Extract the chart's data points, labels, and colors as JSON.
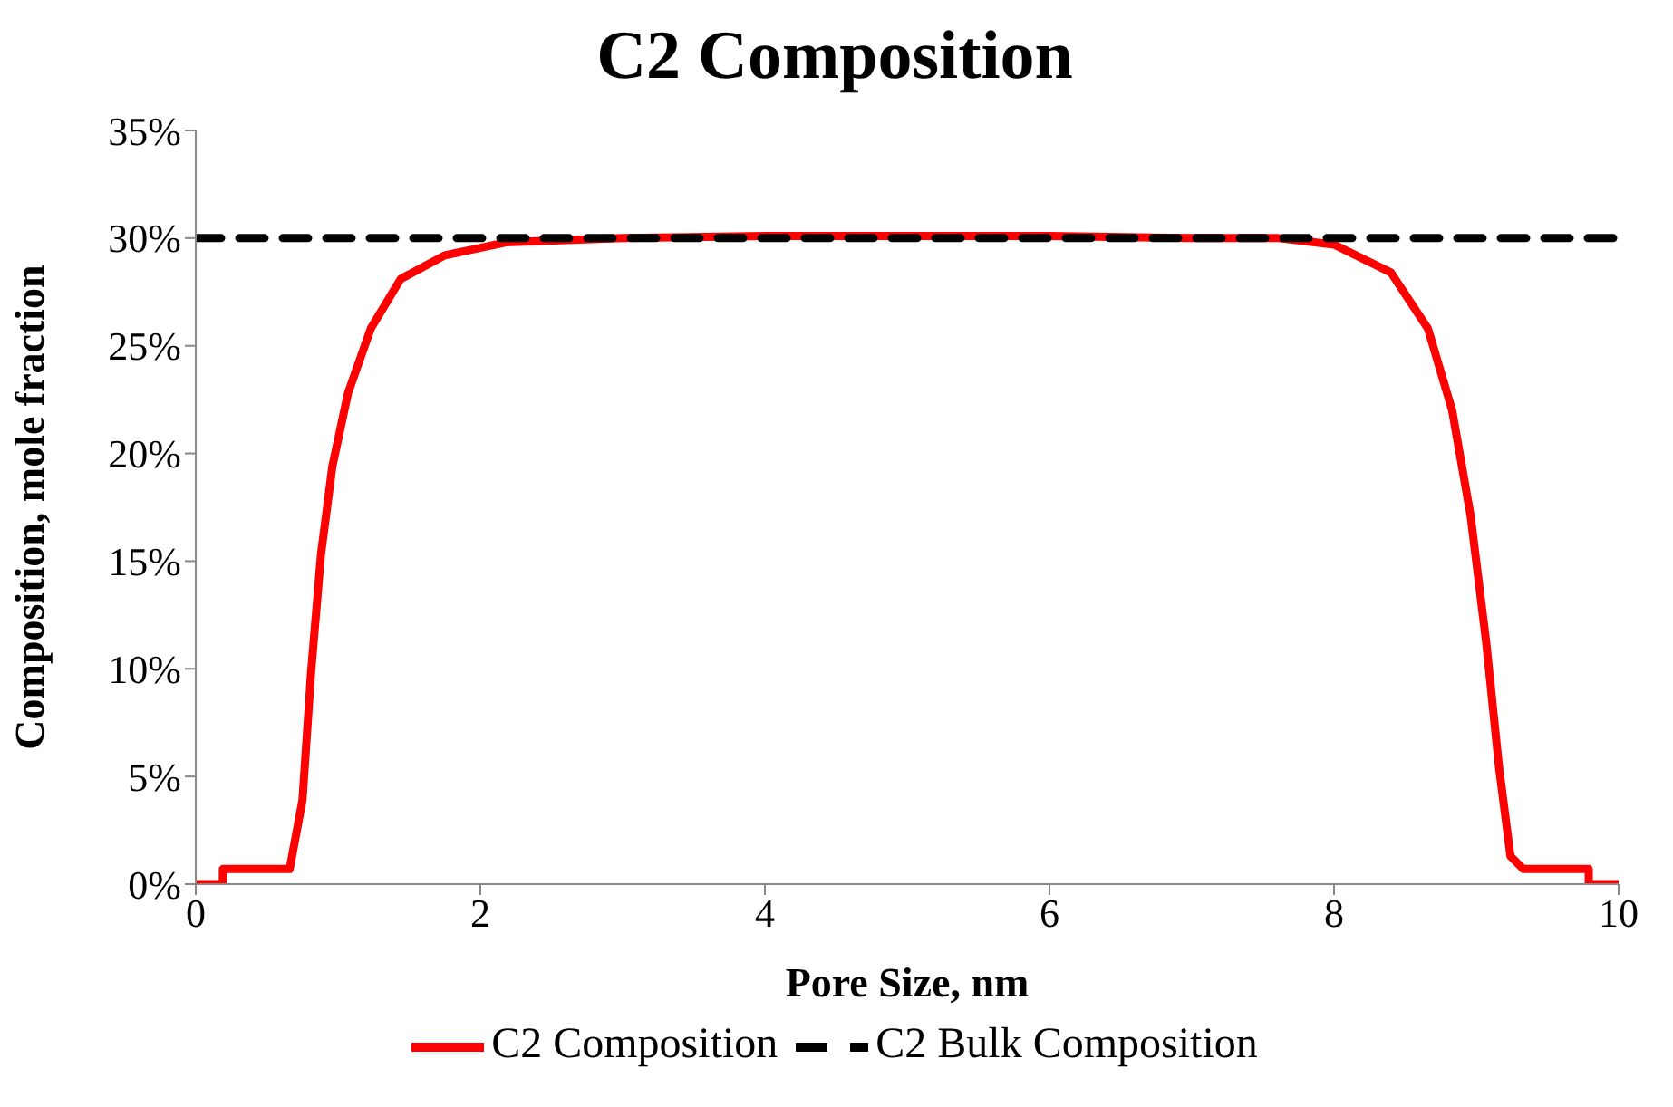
{
  "chart_data": {
    "type": "line",
    "title": "C2 Composition",
    "xlabel": "Pore Size, nm",
    "ylabel": "Composition, mole fraction",
    "xlim": [
      0,
      10
    ],
    "xticks": [
      0,
      2,
      4,
      6,
      8,
      10
    ],
    "ylim": [
      0,
      35
    ],
    "yticks": [
      {
        "value": 0,
        "label": "0%"
      },
      {
        "value": 5,
        "label": "5%"
      },
      {
        "value": 10,
        "label": "10%"
      },
      {
        "value": 15,
        "label": "15%"
      },
      {
        "value": 20,
        "label": "20%"
      },
      {
        "value": 25,
        "label": "25%"
      },
      {
        "value": 30,
        "label": "30%"
      },
      {
        "value": 35,
        "label": "35%"
      }
    ],
    "grid": false,
    "legend": "bottom",
    "marker": "none",
    "series": [
      {
        "name": "C2 Composition",
        "color": "#ff0000",
        "line_style": "solid",
        "x": [
          0,
          0.19,
          0.19,
          0.66,
          0.75,
          0.81,
          0.88,
          0.96,
          1.07,
          1.23,
          1.44,
          1.75,
          2.18,
          3,
          4,
          5,
          6,
          7,
          7.61,
          8,
          8.4,
          8.66,
          8.83,
          8.96,
          9.07,
          9.16,
          9.24,
          9.33,
          9.79,
          9.79,
          10
        ],
        "values": [
          0,
          0,
          0.7,
          0.7,
          3.9,
          9.8,
          15.3,
          19.4,
          22.8,
          25.8,
          28.1,
          29.2,
          29.8,
          30,
          30.1,
          30.1,
          30.1,
          30,
          30,
          29.7,
          28.4,
          25.8,
          22,
          17.1,
          11.2,
          5.4,
          1.3,
          0.7,
          0.7,
          0,
          0
        ]
      },
      {
        "name": "C2 Bulk Composition",
        "color": "#000000",
        "line_style": "dashed",
        "x": [
          0,
          10
        ],
        "values": [
          30,
          30
        ]
      }
    ]
  }
}
